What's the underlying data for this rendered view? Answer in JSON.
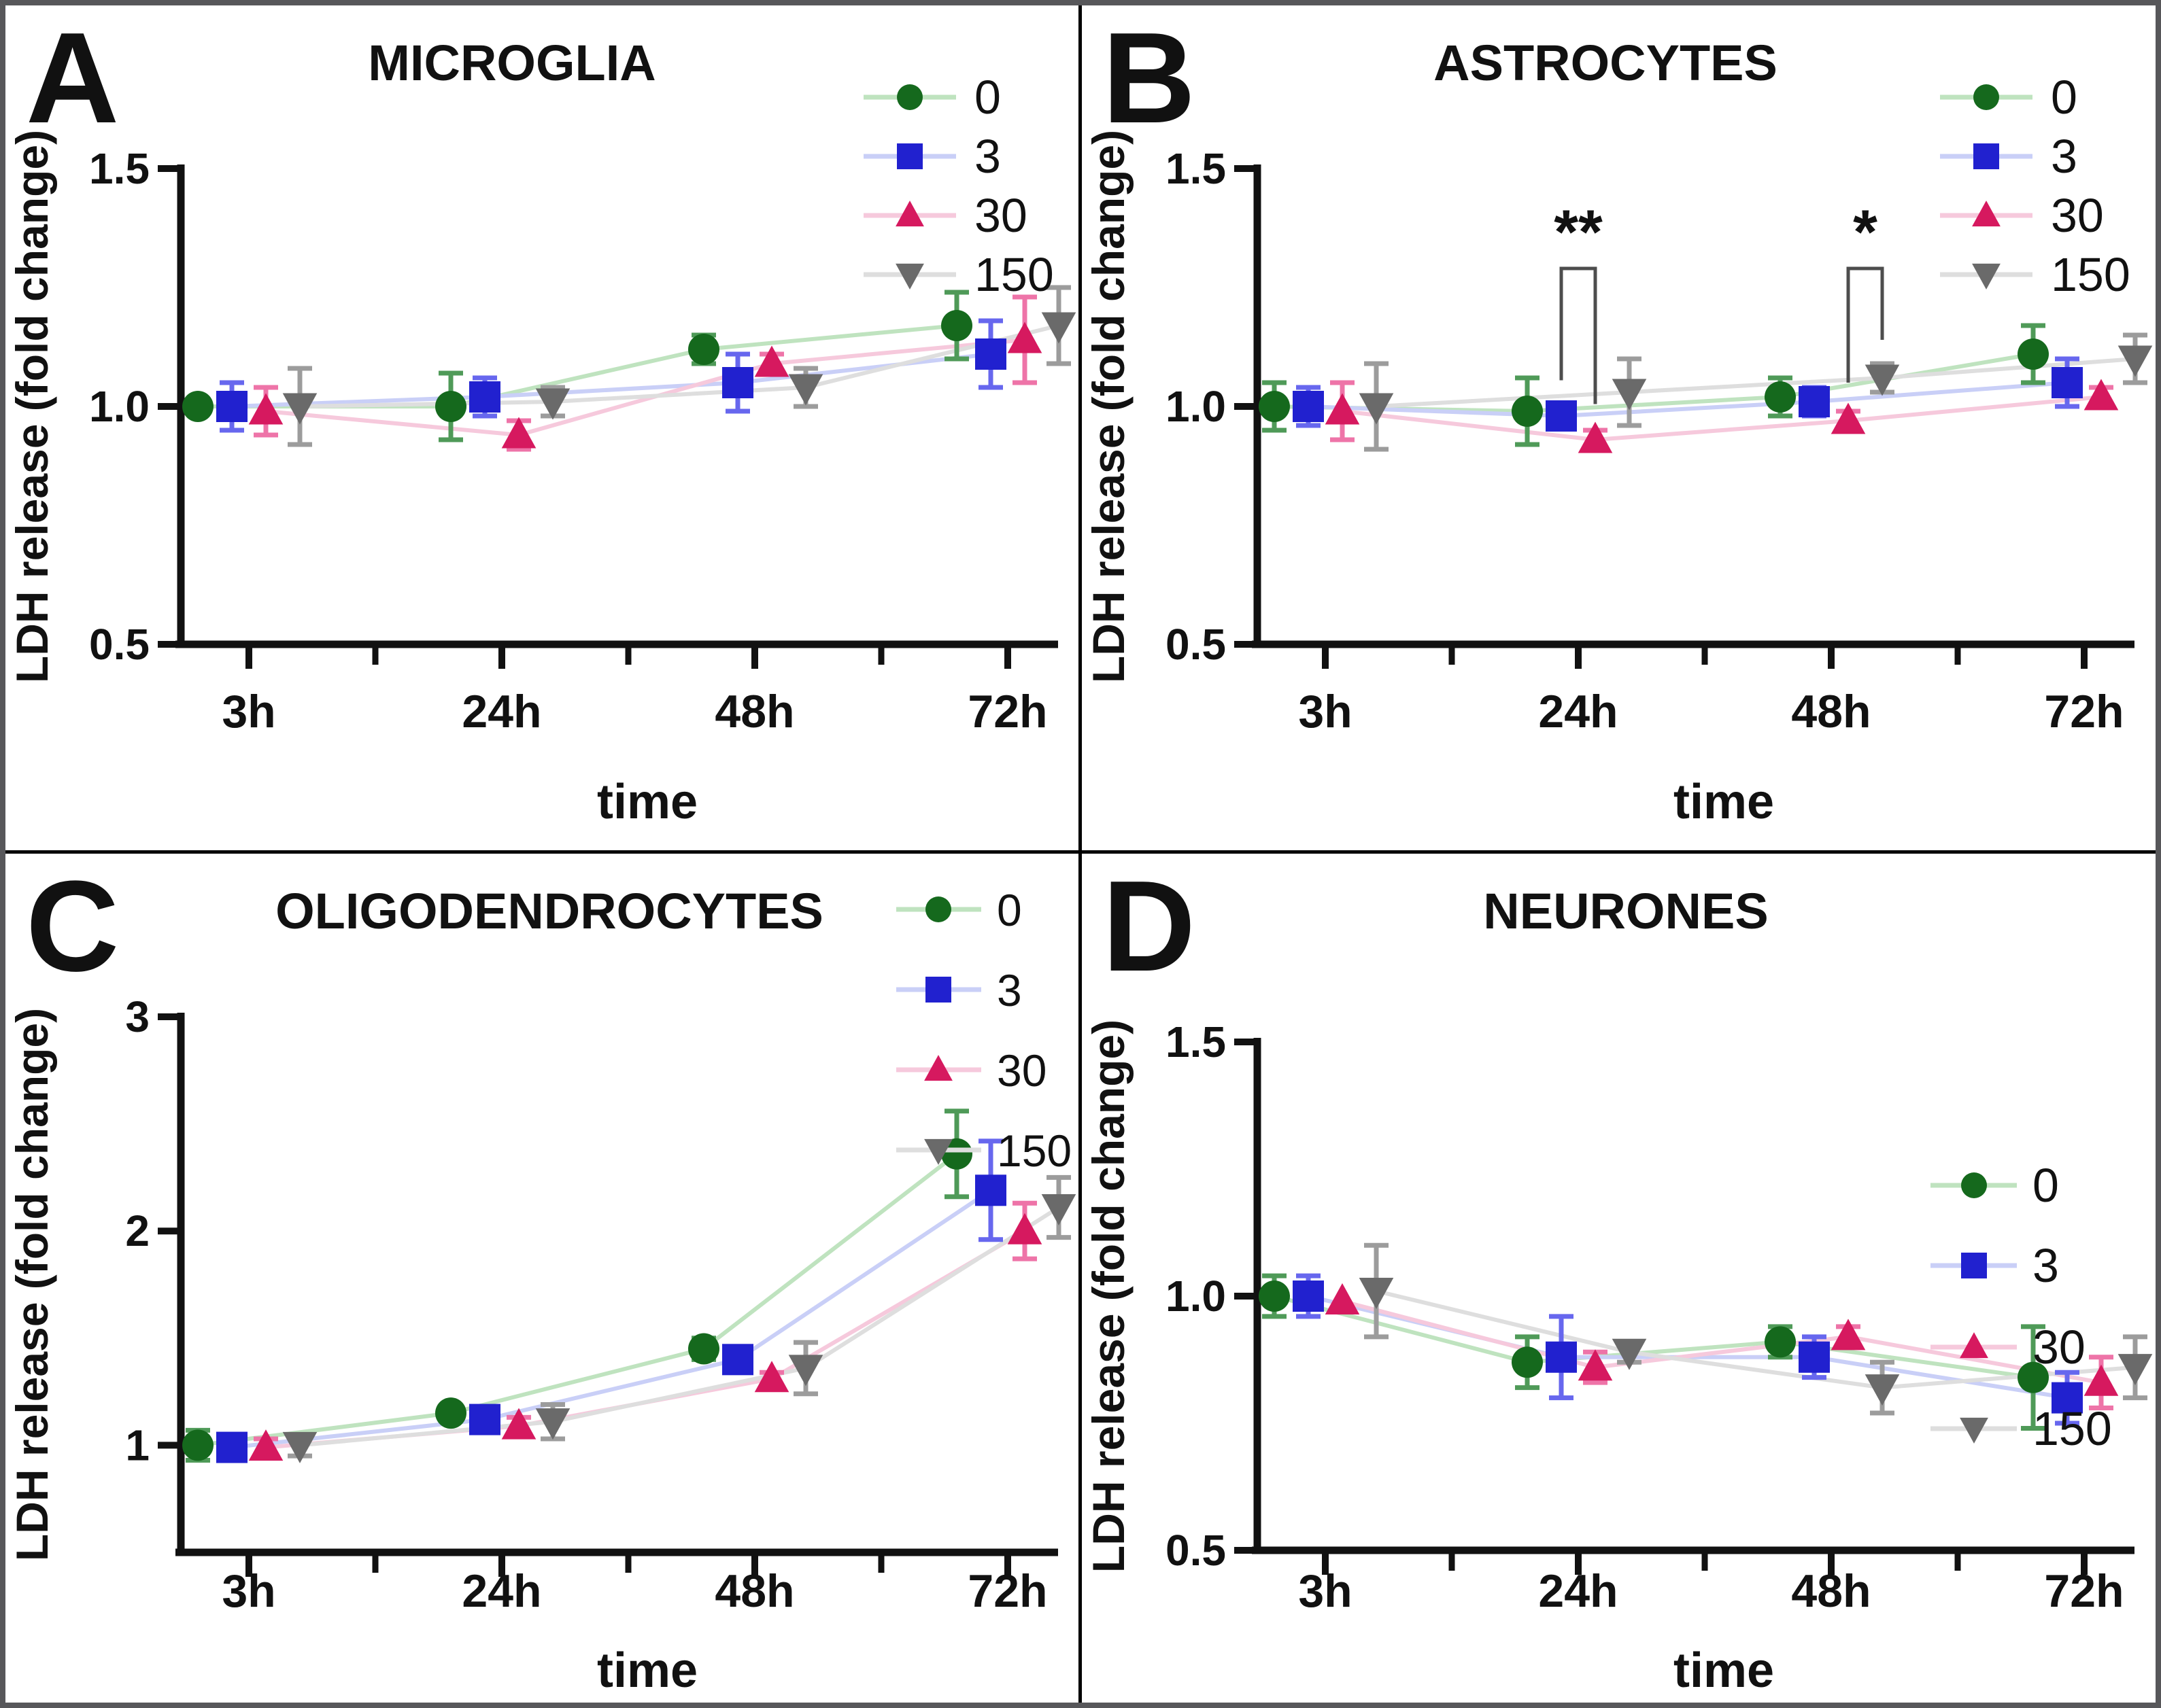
{
  "figure": {
    "background_color": "#ffffff",
    "outer_border_color": "#57575a",
    "grid_line_color": "#000000"
  },
  "chart_data": [
    {
      "type": "line",
      "panel_letter": "A",
      "title": "MICROGLIA",
      "xlabel": "time",
      "ylabel": "LDH release (fold change)",
      "categories": [
        "3h",
        "24h",
        "48h",
        "72h"
      ],
      "ylim": [
        0.5,
        1.5
      ],
      "yticks": [
        {
          "value": 1.5,
          "label": "1.5"
        },
        {
          "value": 1.0,
          "label": "1.0"
        },
        {
          "value": 0.5,
          "label": "0.5"
        }
      ],
      "grid": false,
      "legend_position": "top-right",
      "legend": [
        "0",
        "3",
        "30",
        "150"
      ],
      "series": [
        {
          "name": "0",
          "marker": "circle",
          "color": "#15691d",
          "err_color": "#4f9a58",
          "line_color": "#bfe3bf",
          "values": [
            1.0,
            1.0,
            1.12,
            1.17
          ],
          "errors": [
            0,
            0.07,
            0.03,
            0.07
          ]
        },
        {
          "name": "3",
          "marker": "square",
          "color": "#2121cf",
          "err_color": "#6767ee",
          "line_color": "#c9cff7",
          "values": [
            1.0,
            1.02,
            1.05,
            1.11
          ],
          "errors": [
            0.05,
            0.04,
            0.06,
            0.07
          ]
        },
        {
          "name": "30",
          "marker": "triangle-up",
          "color": "#d6195f",
          "err_color": "#ee74a8",
          "line_color": "#f6c9dc",
          "values": [
            0.99,
            0.94,
            1.09,
            1.14
          ],
          "errors": [
            0.05,
            0.03,
            0.02,
            0.09
          ]
        },
        {
          "name": "150",
          "marker": "triangle-down",
          "color": "#6a6a6a",
          "err_color": "#9c9c9c",
          "line_color": "#dedede",
          "values": [
            1.0,
            1.01,
            1.04,
            1.17
          ],
          "errors": [
            0.08,
            0.03,
            0.04,
            0.08
          ]
        }
      ],
      "significance": []
    },
    {
      "type": "line",
      "panel_letter": "B",
      "title": "ASTROCYTES",
      "xlabel": "time",
      "ylabel": "LDH release (fold change)",
      "categories": [
        "3h",
        "24h",
        "48h",
        "72h"
      ],
      "ylim": [
        0.5,
        1.5
      ],
      "yticks": [
        {
          "value": 1.5,
          "label": "1.5"
        },
        {
          "value": 1.0,
          "label": "1.0"
        },
        {
          "value": 0.5,
          "label": "0.5"
        }
      ],
      "grid": false,
      "legend_position": "top-right",
      "legend": [
        "0",
        "3",
        "30",
        "150"
      ],
      "series": [
        {
          "name": "0",
          "marker": "circle",
          "color": "#15691d",
          "err_color": "#4f9a58",
          "line_color": "#bfe3bf",
          "values": [
            1.0,
            0.99,
            1.02,
            1.11
          ],
          "errors": [
            0.05,
            0.07,
            0.04,
            0.06
          ]
        },
        {
          "name": "3",
          "marker": "square",
          "color": "#2121cf",
          "err_color": "#6767ee",
          "line_color": "#c9cff7",
          "values": [
            1.0,
            0.98,
            1.01,
            1.05
          ],
          "errors": [
            0.04,
            0.02,
            0.03,
            0.05
          ]
        },
        {
          "name": "30",
          "marker": "triangle-up",
          "color": "#d6195f",
          "err_color": "#ee74a8",
          "line_color": "#f6c9dc",
          "values": [
            0.99,
            0.93,
            0.97,
            1.02
          ],
          "errors": [
            0.06,
            0.02,
            0.02,
            0.02
          ]
        },
        {
          "name": "150",
          "marker": "triangle-down",
          "color": "#6a6a6a",
          "err_color": "#9c9c9c",
          "line_color": "#dedede",
          "values": [
            1.0,
            1.03,
            1.06,
            1.1
          ],
          "errors": [
            0.09,
            0.07,
            0.03,
            0.05
          ]
        }
      ],
      "significance": [
        {
          "symbol": "**",
          "category": "24h",
          "series": [
            "3",
            "30"
          ],
          "bar_value": 1.29,
          "drop_values": [
            1.055,
            1.005
          ]
        },
        {
          "symbol": "*",
          "category": "48h",
          "series": [
            "30",
            "150"
          ],
          "bar_value": 1.29,
          "drop_values": [
            1.05,
            1.14
          ]
        }
      ]
    },
    {
      "type": "line",
      "panel_letter": "C",
      "title": "OLIGODENDROCYTES",
      "xlabel": "time",
      "ylabel": "LDH release (fold change)",
      "categories": [
        "3h",
        "24h",
        "48h",
        "72h"
      ],
      "ylim": [
        0.5,
        3.0
      ],
      "yticks": [
        {
          "value": 3,
          "label": "3"
        },
        {
          "value": 2,
          "label": "2"
        },
        {
          "value": 1,
          "label": "1"
        }
      ],
      "grid": false,
      "legend_position": "top-right",
      "legend": [
        "0",
        "3",
        "30",
        "150"
      ],
      "series": [
        {
          "name": "0",
          "marker": "circle",
          "color": "#15691d",
          "err_color": "#4f9a58",
          "line_color": "#bfe3bf",
          "values": [
            1.0,
            1.15,
            1.45,
            2.36
          ],
          "errors": [
            0.07,
            0,
            0.05,
            0.2
          ]
        },
        {
          "name": "3",
          "marker": "square",
          "color": "#2121cf",
          "err_color": "#6767ee",
          "line_color": "#c9cff7",
          "values": [
            0.99,
            1.12,
            1.4,
            2.19
          ],
          "errors": [
            0.06,
            0.03,
            0,
            0.23
          ]
        },
        {
          "name": "30",
          "marker": "triangle-up",
          "color": "#d6195f",
          "err_color": "#ee74a8",
          "line_color": "#f6c9dc",
          "values": [
            0.99,
            1.09,
            1.31,
            2.0
          ],
          "errors": [
            0.04,
            0.04,
            0.03,
            0.13
          ]
        },
        {
          "name": "150",
          "marker": "triangle-down",
          "color": "#6a6a6a",
          "err_color": "#9c9c9c",
          "line_color": "#dedede",
          "values": [
            1.0,
            1.11,
            1.36,
            2.11
          ],
          "errors": [
            0.05,
            0.08,
            0.12,
            0.14
          ]
        }
      ],
      "significance": []
    },
    {
      "type": "line",
      "panel_letter": "D",
      "title": "NEURONES",
      "xlabel": "time",
      "ylabel": "LDH release (fold change)",
      "categories": [
        "3h",
        "24h",
        "48h",
        "72h"
      ],
      "ylim": [
        0.5,
        1.5
      ],
      "yticks": [
        {
          "value": 1.5,
          "label": "1.5"
        },
        {
          "value": 1.0,
          "label": "1.0"
        },
        {
          "value": 0.5,
          "label": "0.5"
        }
      ],
      "grid": false,
      "legend_position": "mid-right",
      "legend": [
        "0",
        "3",
        "30",
        "150"
      ],
      "series": [
        {
          "name": "0",
          "marker": "circle",
          "color": "#15691d",
          "err_color": "#4f9a58",
          "line_color": "#bfe3bf",
          "values": [
            1.0,
            0.87,
            0.91,
            0.84
          ],
          "errors": [
            0.04,
            0.05,
            0.03,
            0.1
          ]
        },
        {
          "name": "3",
          "marker": "square",
          "color": "#2121cf",
          "err_color": "#6767ee",
          "line_color": "#c9cff7",
          "values": [
            1.0,
            0.88,
            0.88,
            0.8
          ],
          "errors": [
            0.04,
            0.08,
            0.04,
            0.05
          ]
        },
        {
          "name": "30",
          "marker": "triangle-up",
          "color": "#d6195f",
          "err_color": "#ee74a8",
          "line_color": "#f6c9dc",
          "values": [
            0.99,
            0.86,
            0.92,
            0.83
          ],
          "errors": [
            0,
            0.03,
            0.02,
            0.05
          ]
        },
        {
          "name": "150",
          "marker": "triangle-down",
          "color": "#6a6a6a",
          "err_color": "#9c9c9c",
          "line_color": "#dedede",
          "values": [
            1.01,
            0.89,
            0.82,
            0.86
          ],
          "errors": [
            0.09,
            0.02,
            0.05,
            0.06
          ]
        }
      ],
      "significance": []
    }
  ]
}
